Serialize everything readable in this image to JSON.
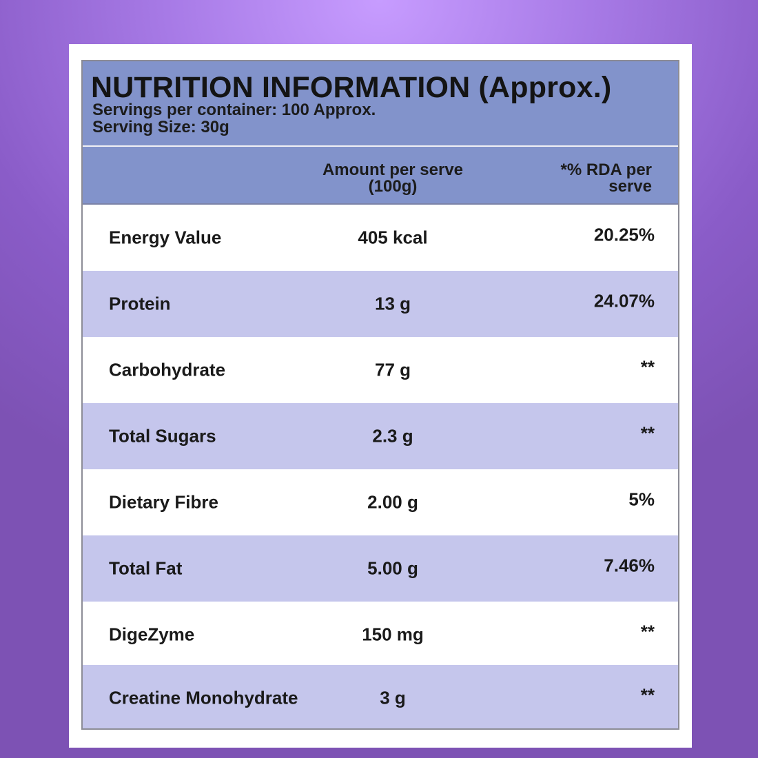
{
  "title": "NUTRITION INFORMATION (Approx.)",
  "servings_per_container": "Servings per container: 100 Approx.",
  "serving_size": "Serving Size: 30g",
  "columns": {
    "amount_line1": "Amount per serve",
    "amount_line2": "(100g)",
    "rda_line1": "*% RDA per",
    "rda_line2": "serve"
  },
  "rows": [
    {
      "name": "Energy Value",
      "amount": "405 kcal",
      "rda": "20.25%"
    },
    {
      "name": "Protein",
      "amount": "13 g",
      "rda": "24.07%"
    },
    {
      "name": "Carbohydrate",
      "amount": "77 g",
      "rda": "**"
    },
    {
      "name": "Total Sugars",
      "amount": "2.3 g",
      "rda": "**"
    },
    {
      "name": "Dietary Fibre",
      "amount": "2.00 g",
      "rda": "5%"
    },
    {
      "name": "Total Fat",
      "amount": "5.00 g",
      "rda": "7.46%"
    },
    {
      "name": "DigeZyme",
      "amount": "150 mg",
      "rda": "**"
    },
    {
      "name": "Creatine Monohydrate",
      "amount": "3 g",
      "rda": "**"
    }
  ],
  "colors": {
    "header": "#8293cb",
    "alt_row": "#c5c6ec",
    "background_top": "#c79cff",
    "background_bottom": "#7d52b4"
  }
}
